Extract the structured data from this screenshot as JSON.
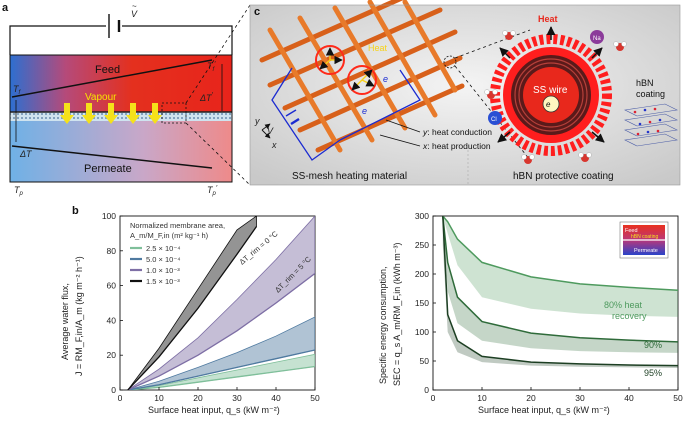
{
  "panel_a": {
    "label": "a",
    "voltage": "V",
    "feed": "Feed",
    "vapour": "Vapour",
    "permeate": "Permeate",
    "t_f": "T",
    "t_f_sub": "f",
    "t_f_prime": "T",
    "t_f_prime_sub": "f",
    "t_f_prime_mark": "′",
    "delta_t": "ΔT",
    "delta_t_prime": "ΔT",
    "delta_t_prime_mark": "′",
    "t_p": "T",
    "t_p_sub": "p",
    "t_p_prime": "T",
    "t_p_prime_sub": "p",
    "t_p_prime_mark": "′",
    "colors": {
      "feed_hot": "#e8241b",
      "feed_cool": "#2a7fd6",
      "permeate_cool": "#6fb1e6",
      "permeate_warm": "#ee8a8a"
    }
  },
  "panel_c": {
    "label": "c",
    "heat_left": "Heat",
    "heat_right": "Heat",
    "voltage": "V",
    "electron": "e",
    "y_axis": "y",
    "x_axis": "x",
    "y_legend_axis": "y",
    "y_legend_text": ": heat conduction",
    "x_legend_axis": "x",
    "x_legend_text": ": heat production",
    "ss_wire": "SS wire",
    "hbn_coating": "hBN\ncoating",
    "na_ion": "Na",
    "cl_ion": "Cl",
    "caption_left": "SS-mesh heating material",
    "caption_right": "hBN protective coating"
  },
  "panel_b": {
    "label": "b"
  },
  "chart_data": [
    {
      "type": "area",
      "title": "",
      "ylabel_line1": "Average water flux,",
      "ylabel_line2": "J = RM_F,in/A_m (kg m⁻² h⁻¹)",
      "xlabel": "Surface heat input, q_s (kW m⁻²)",
      "xlim": [
        0,
        50
      ],
      "ylim": [
        0,
        100
      ],
      "xticks": [
        0,
        10,
        20,
        30,
        40,
        50
      ],
      "yticks": [
        0,
        20,
        40,
        60,
        80,
        100
      ],
      "legend_title_line1": "Normalized membrane area,",
      "legend_title_line2": "A_m/M_F,in (m² kg⁻¹ h)",
      "annotations": [
        "ΔT_rim = 0 °C",
        "ΔT_rim = 5 °C"
      ],
      "series": [
        {
          "name": "2.5 × 10⁻⁴",
          "color": "#7fbf9a",
          "x": [
            2,
            10,
            20,
            30,
            40,
            50
          ],
          "upper": [
            0,
            2.5,
            7,
            11.5,
            16,
            20.5
          ],
          "lower": [
            0,
            1.5,
            4.5,
            7.5,
            10.5,
            13.5
          ]
        },
        {
          "name": "5.0 × 10⁻⁴",
          "color": "#4f7aa0",
          "x": [
            2,
            10,
            20,
            30,
            40,
            50
          ],
          "upper": [
            0,
            5,
            13,
            21.5,
            31,
            42
          ],
          "lower": [
            0,
            3,
            8,
            13,
            18,
            23
          ]
        },
        {
          "name": "1.0 × 10⁻³",
          "color": "#7e6fa5",
          "x": [
            2,
            10,
            20,
            30,
            40,
            50
          ],
          "upper": [
            0,
            12,
            30,
            52,
            75,
            100
          ],
          "lower": [
            0,
            8,
            20,
            34,
            50,
            67
          ]
        },
        {
          "name": "1.5 × 10⁻³",
          "color": "#111111",
          "x": [
            2,
            10,
            20,
            30,
            35
          ],
          "upper": [
            0,
            24,
            58,
            92,
            100
          ],
          "lower": [
            0,
            19,
            47,
            78,
            94
          ]
        }
      ]
    },
    {
      "type": "area",
      "title": "",
      "ylabel_line1": "Specific energy consumption,",
      "ylabel_line2": "SEC = q_s A_m/RM_F,in (kWh m⁻³)",
      "xlabel": "Surface heat input, q_s (kW m⁻²)",
      "xlim": [
        0,
        50
      ],
      "ylim": [
        0,
        300
      ],
      "xticks": [
        0,
        10,
        20,
        30,
        40,
        50
      ],
      "yticks": [
        0,
        50,
        100,
        150,
        200,
        250,
        300
      ],
      "inset_feed": "Feed",
      "inset_coating": "hBN coating",
      "inset_permeate": "Permeate",
      "series": [
        {
          "name": "80% heat recovery",
          "label_line1": "80% heat",
          "label_line2": "recovery",
          "color": "#4e9a5e",
          "x": [
            2,
            3,
            5,
            10,
            20,
            30,
            40,
            50
          ],
          "line": [
            300,
            290,
            260,
            220,
            195,
            183,
            177,
            172
          ],
          "band_low": [
            300,
            270,
            215,
            160,
            140,
            132,
            128,
            126
          ]
        },
        {
          "name": "90%",
          "color": "#2f6b3a",
          "x": [
            2,
            3,
            5,
            10,
            20,
            30,
            40,
            50
          ],
          "line": [
            300,
            220,
            160,
            118,
            98,
            90,
            86,
            83
          ],
          "band_low": [
            280,
            170,
            115,
            85,
            72,
            67,
            65,
            64
          ]
        },
        {
          "name": "95%",
          "color": "#1d3f23",
          "x": [
            2,
            3,
            5,
            10,
            20,
            30,
            40,
            50
          ],
          "line": [
            300,
            130,
            85,
            58,
            48,
            45,
            43,
            42
          ],
          "band_low": [
            250,
            100,
            65,
            48,
            42,
            40,
            39,
            38
          ]
        }
      ]
    }
  ]
}
